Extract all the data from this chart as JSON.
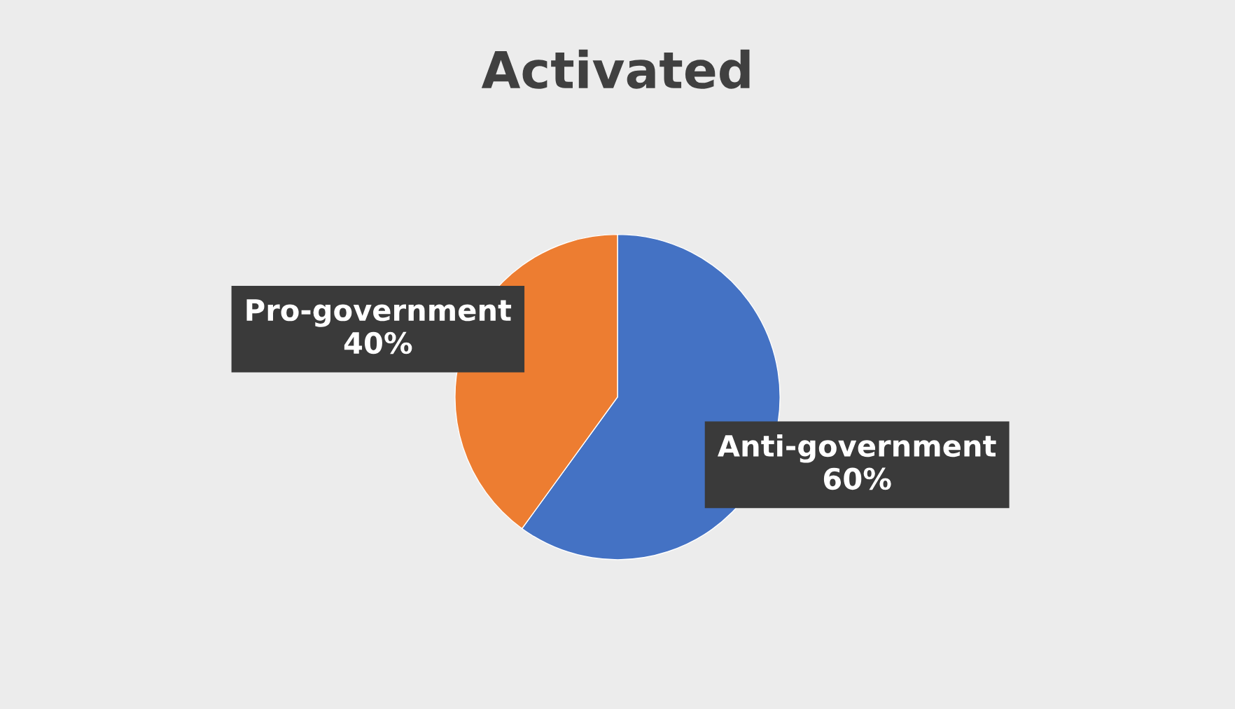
{
  "chart_data": {
    "type": "pie",
    "title": "Activated",
    "categories": [
      "Anti-government",
      "Pro-government"
    ],
    "values": [
      60,
      40
    ],
    "value_labels": [
      "60%",
      "40%"
    ],
    "colors": [
      "#4472c4",
      "#ed7d31"
    ]
  }
}
